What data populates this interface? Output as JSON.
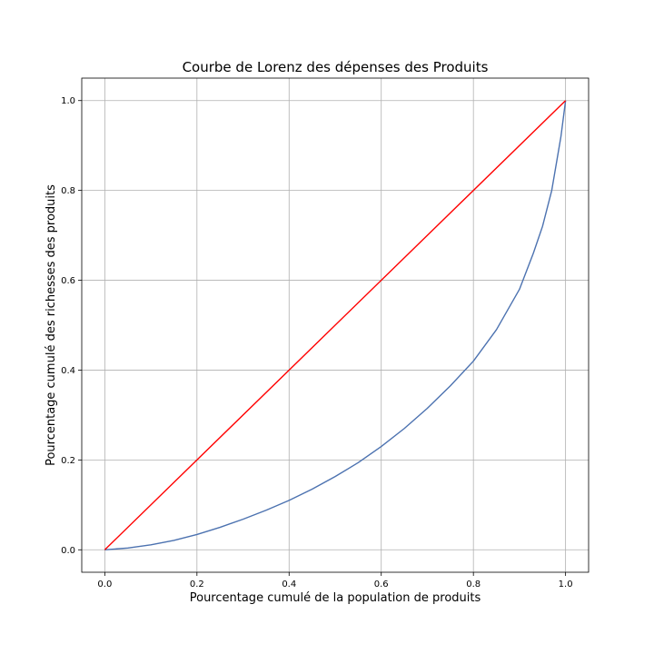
{
  "chart_data": {
    "type": "line",
    "title": "Courbe de Lorenz des dépenses des Produits",
    "xlabel": "Pourcentage cumulé de la population de produits",
    "ylabel": "Pourcentage cumulé des richesses des produits",
    "xlim": [
      -0.05,
      1.05
    ],
    "ylim": [
      -0.05,
      1.05
    ],
    "xticks": [
      "0.0",
      "0.2",
      "0.4",
      "0.6",
      "0.8",
      "1.0"
    ],
    "yticks": [
      "0.0",
      "0.2",
      "0.4",
      "0.6",
      "0.8",
      "1.0"
    ],
    "grid": true,
    "series": [
      {
        "color": "#4c72b0",
        "x": [
          0.0,
          0.05,
          0.1,
          0.15,
          0.2,
          0.25,
          0.3,
          0.35,
          0.4,
          0.45,
          0.5,
          0.55,
          0.6,
          0.65,
          0.7,
          0.75,
          0.8,
          0.85,
          0.9,
          0.93,
          0.95,
          0.97,
          0.98,
          0.99,
          1.0
        ],
        "y": [
          0.0,
          0.004,
          0.011,
          0.021,
          0.034,
          0.05,
          0.068,
          0.088,
          0.11,
          0.135,
          0.163,
          0.194,
          0.23,
          0.27,
          0.315,
          0.365,
          0.42,
          0.49,
          0.58,
          0.66,
          0.72,
          0.8,
          0.86,
          0.92,
          1.0
        ]
      },
      {
        "color": "#ff0000",
        "x": [
          0.0,
          1.0
        ],
        "y": [
          0.0,
          1.0
        ]
      }
    ]
  }
}
